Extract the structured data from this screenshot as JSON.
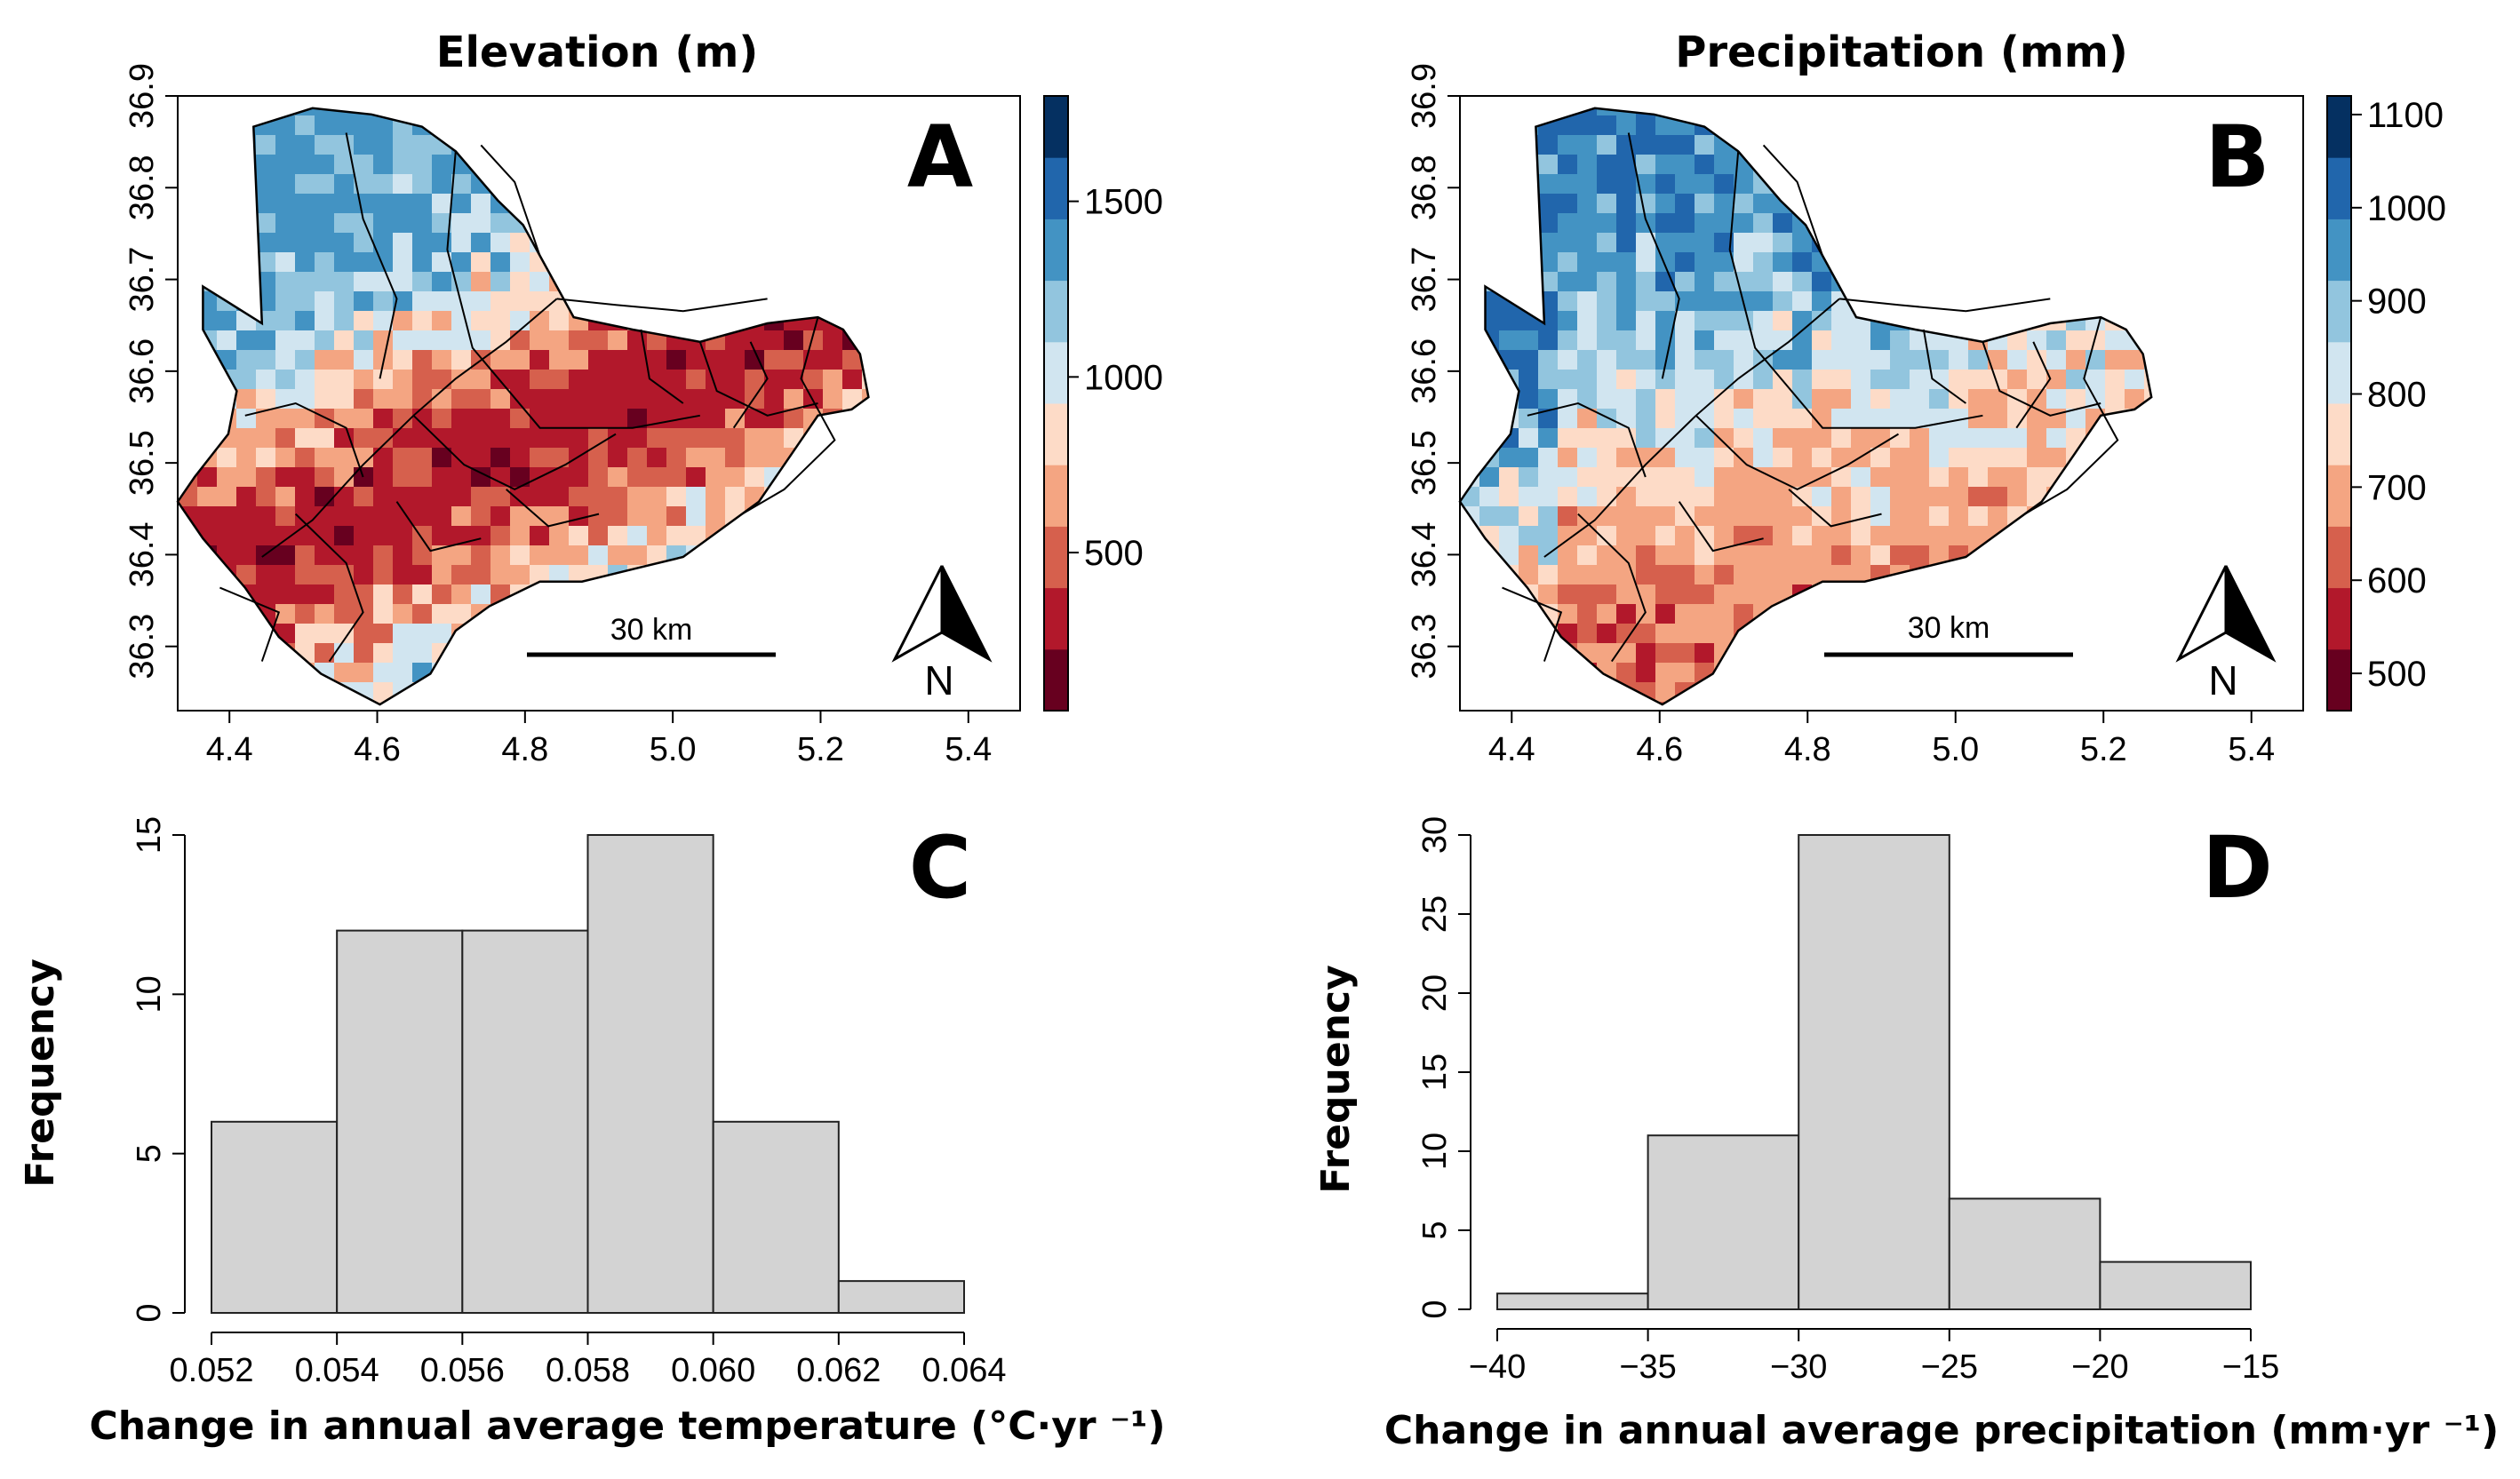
{
  "chart_data": [
    {
      "panel": "A",
      "type": "heatmap",
      "title": "Elevation (m)",
      "x_ticks": [
        "4.4",
        "4.6",
        "4.8",
        "5.0",
        "5.2",
        "5.4"
      ],
      "y_ticks": [
        "36.3",
        "36.4",
        "36.5",
        "36.6",
        "36.7",
        "36.8",
        "36.9"
      ],
      "xlim": [
        4.33,
        5.47
      ],
      "ylim": [
        36.23,
        36.9
      ],
      "colorbar_ticks": [
        "500",
        "1000",
        "1500"
      ],
      "colorbar_range": [
        50,
        1800
      ],
      "colorbar_colors": [
        "#67001f",
        "#b2182b",
        "#d6604d",
        "#f4a582",
        "#fddbc7",
        "#d1e5f0",
        "#92c5de",
        "#4393c3",
        "#2166ac",
        "#053061"
      ],
      "scale_bar_label": "30 km",
      "north_label": "N",
      "map_color_mix": [
        "#67001f",
        "#b2182b",
        "#b2182b",
        "#d6604d",
        "#f4a582",
        "#fddbc7",
        "#d1e5f0",
        "#92c5de",
        "#4393c3"
      ]
    },
    {
      "panel": "B",
      "type": "heatmap",
      "title": "Precipitation (mm)",
      "x_ticks": [
        "4.4",
        "4.6",
        "4.8",
        "5.0",
        "5.2",
        "5.4"
      ],
      "y_ticks": [
        "36.3",
        "36.4",
        "36.5",
        "36.6",
        "36.7",
        "36.8",
        "36.9"
      ],
      "xlim": [
        4.33,
        5.47
      ],
      "ylim": [
        36.23,
        36.9
      ],
      "colorbar_ticks": [
        "500",
        "600",
        "700",
        "800",
        "900",
        "1000",
        "1100"
      ],
      "colorbar_range": [
        460,
        1120
      ],
      "colorbar_colors": [
        "#67001f",
        "#b2182b",
        "#d6604d",
        "#f4a582",
        "#fddbc7",
        "#d1e5f0",
        "#92c5de",
        "#4393c3",
        "#2166ac",
        "#053061"
      ],
      "scale_bar_label": "30 km",
      "north_label": "N",
      "map_color_mix": [
        "#b2182b",
        "#d6604d",
        "#f4a582",
        "#f4a582",
        "#fddbc7",
        "#d1e5f0",
        "#92c5de",
        "#4393c3",
        "#2166ac"
      ]
    },
    {
      "panel": "C",
      "type": "bar",
      "subtype": "histogram",
      "bin_edges": [
        0.052,
        0.054,
        0.056,
        0.058,
        0.06,
        0.062,
        0.064
      ],
      "values": [
        6,
        12,
        12,
        15,
        6,
        1
      ],
      "x_ticks": [
        "0.052",
        "0.054",
        "0.056",
        "0.058",
        "0.060",
        "0.062",
        "0.064"
      ],
      "y_ticks": [
        "0",
        "5",
        "10",
        "15"
      ],
      "ylim": [
        0,
        15
      ],
      "xlabel": "Change in annual average temperature (°C·yr ⁻¹)",
      "ylabel": "Frequency"
    },
    {
      "panel": "D",
      "type": "bar",
      "subtype": "histogram",
      "bin_edges": [
        -40,
        -35,
        -30,
        -25,
        -20,
        -15
      ],
      "values": [
        1,
        11,
        30,
        7,
        3
      ],
      "x_ticks": [
        "−40",
        "−35",
        "−30",
        "−25",
        "−20",
        "−15"
      ],
      "y_ticks": [
        "0",
        "5",
        "10",
        "15",
        "20",
        "25",
        "30"
      ],
      "ylim": [
        0,
        30
      ],
      "xlabel": "Change in annual average precipitation (mm·yr ⁻¹)",
      "ylabel": "Frequency"
    }
  ],
  "colors": {
    "bar_fill": "#d3d3d3",
    "bar_stroke": "#222222",
    "axis": "#000000"
  }
}
